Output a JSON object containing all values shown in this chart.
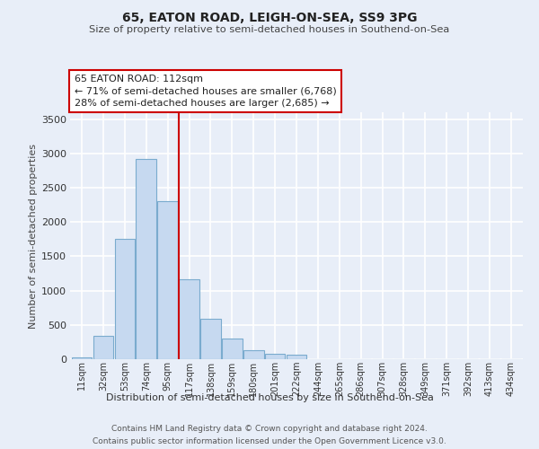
{
  "title": "65, EATON ROAD, LEIGH-ON-SEA, SS9 3PG",
  "subtitle": "Size of property relative to semi-detached houses in Southend-on-Sea",
  "xlabel": "Distribution of semi-detached houses by size in Southend-on-Sea",
  "ylabel": "Number of semi-detached properties",
  "categories": [
    "11sqm",
    "32sqm",
    "53sqm",
    "74sqm",
    "95sqm",
    "117sqm",
    "138sqm",
    "159sqm",
    "180sqm",
    "201sqm",
    "222sqm",
    "244sqm",
    "265sqm",
    "286sqm",
    "307sqm",
    "328sqm",
    "349sqm",
    "371sqm",
    "392sqm",
    "413sqm",
    "434sqm"
  ],
  "values": [
    30,
    340,
    1750,
    2920,
    2300,
    1160,
    590,
    300,
    130,
    75,
    60,
    0,
    0,
    0,
    0,
    0,
    0,
    0,
    0,
    0,
    0
  ],
  "bar_color": "#c6d9f0",
  "bar_edge_color": "#7aabce",
  "vline_position": 4.5,
  "vline_color": "#cc0000",
  "highlight_label": "65 EATON ROAD: 112sqm",
  "annotation_line1": "← 71% of semi-detached houses are smaller (6,768)",
  "annotation_line2": "28% of semi-detached houses are larger (2,685) →",
  "ylim_max": 3600,
  "yticks": [
    0,
    500,
    1000,
    1500,
    2000,
    2500,
    3000,
    3500
  ],
  "bg_color": "#e8eef8",
  "grid_color": "#ffffff",
  "footer_line1": "Contains HM Land Registry data © Crown copyright and database right 2024.",
  "footer_line2": "Contains public sector information licensed under the Open Government Licence v3.0."
}
